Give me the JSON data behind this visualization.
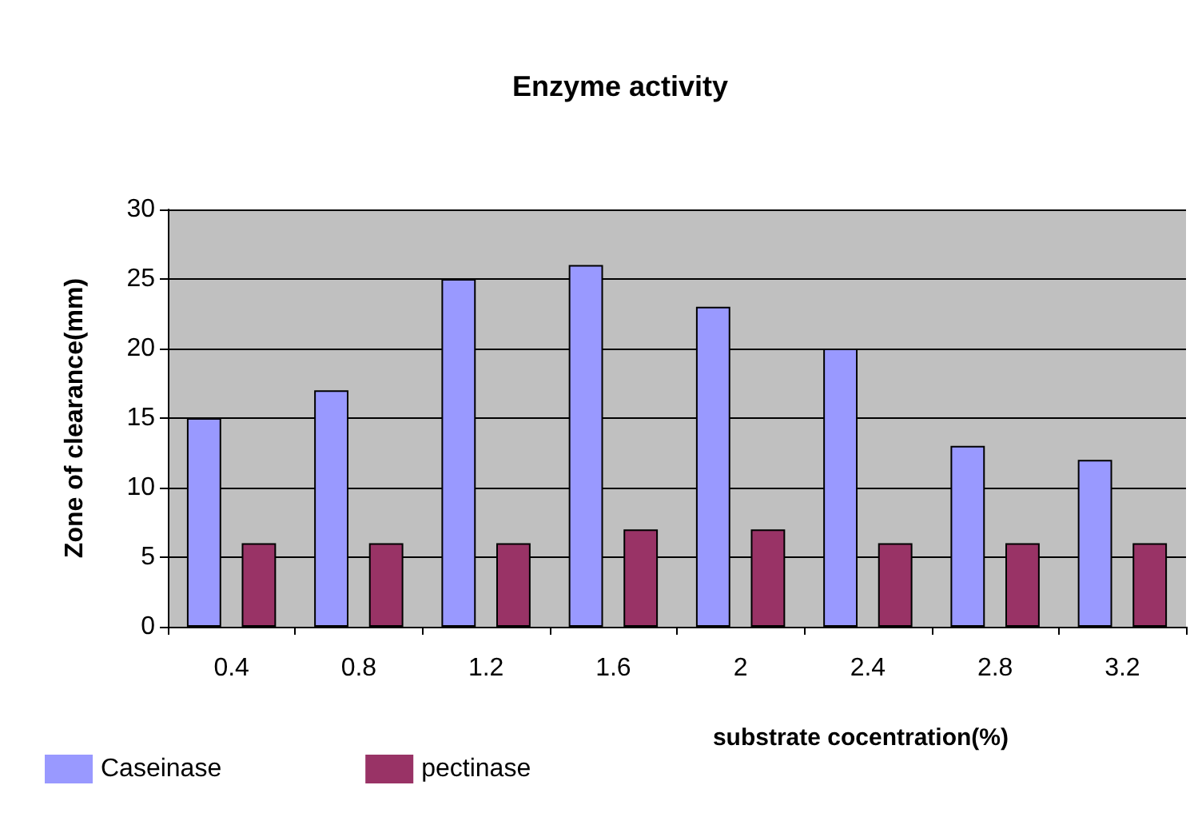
{
  "chart_data": {
    "type": "bar",
    "title": "Enzyme activity",
    "xlabel": "substrate cocentration(%)",
    "ylabel": "Zone of clearance(mm)",
    "categories": [
      "0.4",
      "0.8",
      "1.2",
      "1.6",
      "2",
      "2.4",
      "2.8",
      "3.2"
    ],
    "series": [
      {
        "name": "Caseinase",
        "color": "#9999ff",
        "values": [
          15,
          17,
          25,
          26,
          23,
          20,
          13,
          12
        ]
      },
      {
        "name": "pectinase",
        "color": "#993366",
        "values": [
          6,
          6,
          6,
          7,
          7,
          6,
          6,
          6
        ]
      }
    ],
    "ylim": [
      0,
      30
    ],
    "yticks": [
      0,
      5,
      10,
      15,
      20,
      25,
      30
    ],
    "grid": "y",
    "legend": "bottom left"
  }
}
